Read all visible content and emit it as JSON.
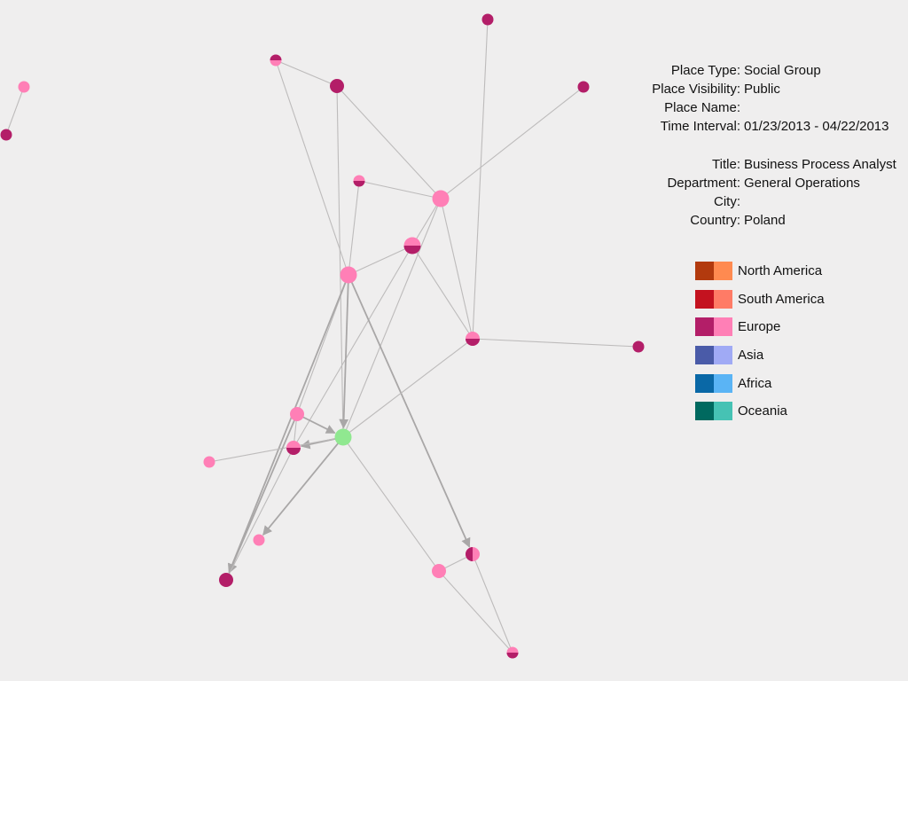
{
  "place_info": [
    {
      "label": "Place Type:",
      "value": "Social Group"
    },
    {
      "label": "Place Visibility:",
      "value": "Public"
    },
    {
      "label": "Place Name:",
      "value": ""
    },
    {
      "label": "Time Interval:",
      "value": "01/23/2013 - 04/22/2013"
    }
  ],
  "person_info": [
    {
      "label": "Title:",
      "value": "Business Process Analyst"
    },
    {
      "label": "Department:",
      "value": "General Operations"
    },
    {
      "label": "City:",
      "value": ""
    },
    {
      "label": "Country:",
      "value": "Poland"
    }
  ],
  "legend": [
    {
      "label": "North America",
      "dark": "#b23a0e",
      "light": "#ff8a50"
    },
    {
      "label": "South America",
      "dark": "#c4121f",
      "light": "#ff7b66"
    },
    {
      "label": "Europe",
      "dark": "#b31e68",
      "light": "#ff7fb6"
    },
    {
      "label": "Asia",
      "dark": "#4a5ba8",
      "light": "#a0aaf5"
    },
    {
      "label": "Africa",
      "dark": "#0a68a6",
      "light": "#5ab4f5"
    },
    {
      "label": "Oceania",
      "dark": "#00695f",
      "light": "#46c2b4"
    }
  ],
  "colors": {
    "background": "#efeeee",
    "edge": "#bdbbbb",
    "europe_dark": "#b31e68",
    "europe_light": "#ff7fb6",
    "focus_node": "#90e890"
  },
  "graph": {
    "nodes": [
      {
        "id": "n1",
        "fill": "light",
        "size": "small"
      },
      {
        "id": "n2",
        "fill": "dark",
        "size": "small"
      },
      {
        "id": "n3",
        "fill": "dark",
        "size": "small"
      },
      {
        "id": "n4",
        "fill": "light-topdark",
        "size": "small"
      },
      {
        "id": "n5",
        "fill": "dark",
        "size": "medium"
      },
      {
        "id": "n6",
        "fill": "dark",
        "size": "small"
      },
      {
        "id": "n7",
        "fill": "dark",
        "size": "small"
      },
      {
        "id": "n8",
        "fill": "light-bottomdark",
        "size": "small"
      },
      {
        "id": "n9",
        "fill": "light",
        "size": "large"
      },
      {
        "id": "n10",
        "fill": "light-bottomdark",
        "size": "large"
      },
      {
        "id": "n11",
        "fill": "light",
        "size": "large"
      },
      {
        "id": "n12",
        "fill": "light-bottomdark",
        "size": "medium"
      },
      {
        "id": "n13",
        "fill": "light",
        "size": "medium"
      },
      {
        "id": "n14",
        "fill": "focus",
        "size": "large"
      },
      {
        "id": "n15",
        "fill": "light-bottomdark",
        "size": "medium"
      },
      {
        "id": "n16",
        "fill": "light",
        "size": "small"
      },
      {
        "id": "n17",
        "fill": "light",
        "size": "small"
      },
      {
        "id": "n18",
        "fill": "dark",
        "size": "medium"
      },
      {
        "id": "n19",
        "fill": "light-leftdark",
        "size": "medium"
      },
      {
        "id": "n20",
        "fill": "light",
        "size": "medium"
      },
      {
        "id": "n21",
        "fill": "light-bottomdark",
        "size": "small"
      }
    ],
    "edges": [
      {
        "from": "n1",
        "to": "n2",
        "arrow": false
      },
      {
        "from": "n4",
        "to": "n5",
        "arrow": false
      },
      {
        "from": "n4",
        "to": "n11",
        "arrow": false
      },
      {
        "from": "n5",
        "to": "n9",
        "arrow": false
      },
      {
        "from": "n5",
        "to": "n14",
        "arrow": false
      },
      {
        "from": "n3",
        "to": "n12",
        "arrow": false
      },
      {
        "from": "n6",
        "to": "n9",
        "arrow": false
      },
      {
        "from": "n8",
        "to": "n9",
        "arrow": false
      },
      {
        "from": "n8",
        "to": "n11",
        "arrow": false
      },
      {
        "from": "n9",
        "to": "n10",
        "arrow": false
      },
      {
        "from": "n9",
        "to": "n12",
        "arrow": false
      },
      {
        "from": "n9",
        "to": "n14",
        "arrow": false
      },
      {
        "from": "n10",
        "to": "n11",
        "arrow": false
      },
      {
        "from": "n10",
        "to": "n12",
        "arrow": false
      },
      {
        "from": "n10",
        "to": "n15",
        "arrow": false
      },
      {
        "from": "n11",
        "to": "n14",
        "arrow": true
      },
      {
        "from": "n11",
        "to": "n13",
        "arrow": false
      },
      {
        "from": "n11",
        "to": "n18",
        "arrow": true
      },
      {
        "from": "n11",
        "to": "n19",
        "arrow": true
      },
      {
        "from": "n12",
        "to": "n7",
        "arrow": false
      },
      {
        "from": "n12",
        "to": "n14",
        "arrow": false
      },
      {
        "from": "n13",
        "to": "n14",
        "arrow": true
      },
      {
        "from": "n13",
        "to": "n15",
        "arrow": false
      },
      {
        "from": "n14",
        "to": "n15",
        "arrow": true
      },
      {
        "from": "n14",
        "to": "n16",
        "arrow": false
      },
      {
        "from": "n14",
        "to": "n17",
        "arrow": true
      },
      {
        "from": "n14",
        "to": "n20",
        "arrow": false
      },
      {
        "from": "n13",
        "to": "n18",
        "arrow": true
      },
      {
        "from": "n15",
        "to": "n18",
        "arrow": false
      },
      {
        "from": "n20",
        "to": "n19",
        "arrow": false
      },
      {
        "from": "n20",
        "to": "n21",
        "arrow": false
      },
      {
        "from": "n19",
        "to": "n21",
        "arrow": false
      }
    ]
  }
}
